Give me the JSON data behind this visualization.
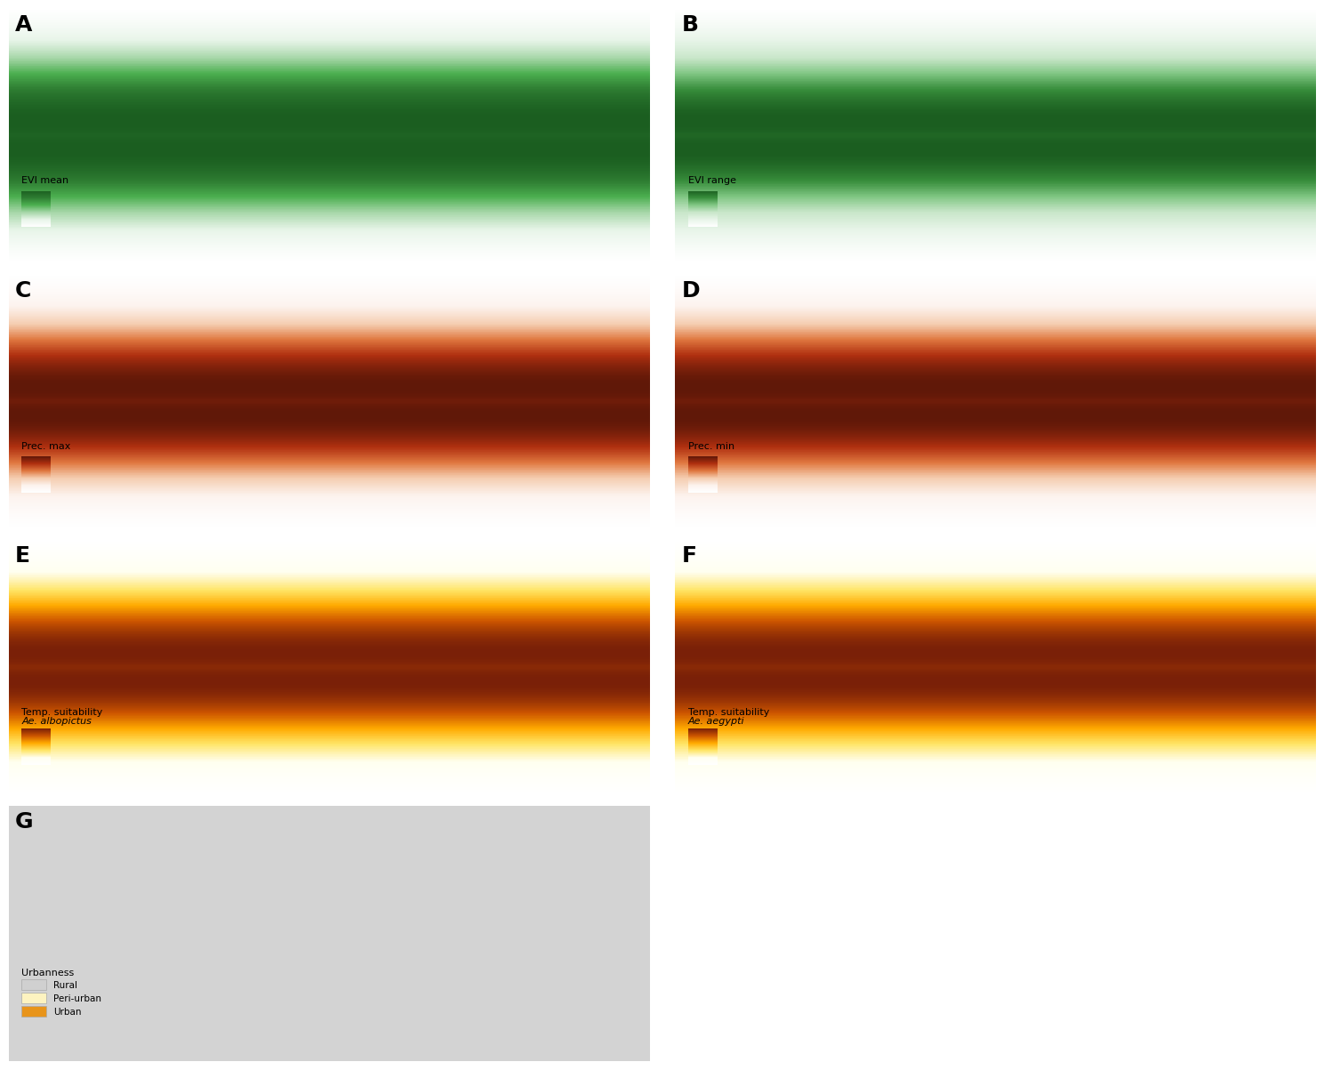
{
  "panels": [
    {
      "label": "A",
      "legend_title": "EVI mean",
      "cmap_type": "green_dark",
      "row": 0,
      "col": 0,
      "categorical": false,
      "legend_italic": false
    },
    {
      "label": "B",
      "legend_title": "EVI range",
      "cmap_type": "green_light",
      "row": 0,
      "col": 1,
      "categorical": false,
      "legend_italic": false
    },
    {
      "label": "C",
      "legend_title": "Prec. max",
      "cmap_type": "brown",
      "row": 1,
      "col": 0,
      "categorical": false,
      "legend_italic": false
    },
    {
      "label": "D",
      "legend_title": "Prec. min",
      "cmap_type": "brown",
      "row": 1,
      "col": 1,
      "categorical": false,
      "legend_italic": false
    },
    {
      "label": "E",
      "legend_title": "Temp. suitability",
      "legend_title2": "Ae. albopictus",
      "cmap_type": "yellow_brown",
      "row": 2,
      "col": 0,
      "categorical": false,
      "legend_italic": true
    },
    {
      "label": "F",
      "legend_title": "Temp. suitability",
      "legend_title2": "Ae. aegypti",
      "cmap_type": "yellow_brown",
      "row": 2,
      "col": 1,
      "categorical": false,
      "legend_italic": true
    },
    {
      "label": "G",
      "legend_title": "Urbanness",
      "cmap_type": "urbanness",
      "row": 3,
      "col": 0,
      "categorical": true,
      "legend_italic": false
    }
  ],
  "urbanness_labels": [
    "Rural",
    "Peri-urban",
    "Urban"
  ],
  "urbanness_colors": [
    "#d0d0d0",
    "#fdf3c0",
    "#e8941a"
  ],
  "bg_color": "#ffffff",
  "figure_width": 15.0,
  "figure_height": 12.08,
  "panel_label_fontsize": 18,
  "legend_fontsize": 8
}
